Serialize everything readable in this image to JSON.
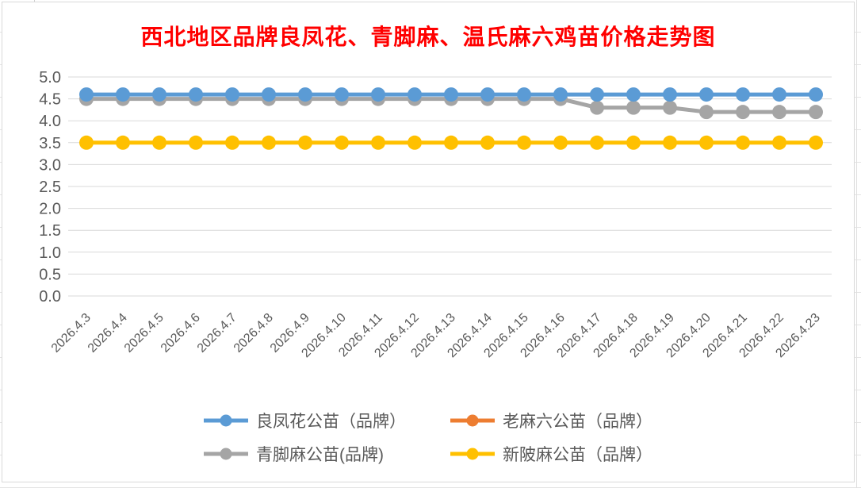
{
  "worksheet": {
    "background": "#FFFFFF",
    "gridline_color": "#E4E4E4"
  },
  "chart_data": {
    "type": "line",
    "title": "西北地区品牌良凤花、青脚麻、温氏麻六鸡苗价格走势图",
    "title_color": "#FF0000",
    "categories": [
      "2026.4.3",
      "2026.4.4",
      "2026.4.5",
      "2026.4.6",
      "2026.4.7",
      "2026.4.8",
      "2026.4.9",
      "2026.4.10",
      "2026.4.11",
      "2026.4.12",
      "2026.4.13",
      "2026.4.14",
      "2026.4.15",
      "2026.4.16",
      "2026.4.17",
      "2026.4.18",
      "2026.4.19",
      "2026.4.20",
      "2026.4.21",
      "2026.4.22",
      "2026.4.23"
    ],
    "ylim": [
      0.0,
      5.0
    ],
    "ytick_step": 0.5,
    "ytick_labels": [
      "0.0",
      "0.5",
      "1.0",
      "1.5",
      "2.0",
      "2.5",
      "3.0",
      "3.5",
      "4.0",
      "4.5",
      "5.0"
    ],
    "grid": true,
    "gridline_color": "#D9D9D9",
    "axis_label_color": "#595959",
    "xlabel_rotation_deg": -45,
    "legend_position": "bottom",
    "legend_columns": 2,
    "series": [
      {
        "name": "良凤花公苗（品牌）",
        "color": "#5B9BD5",
        "values": [
          4.6,
          4.6,
          4.6,
          4.6,
          4.6,
          4.6,
          4.6,
          4.6,
          4.6,
          4.6,
          4.6,
          4.6,
          4.6,
          4.6,
          4.6,
          4.6,
          4.6,
          4.6,
          4.6,
          4.6,
          4.6
        ]
      },
      {
        "name": "老麻六公苗（品牌）",
        "color": "#ED7D31",
        "values": [],
        "visible_in_plot": false
      },
      {
        "name": "青脚麻公苗(品牌)",
        "color": "#A5A5A5",
        "values": [
          4.5,
          4.5,
          4.5,
          4.5,
          4.5,
          4.5,
          4.5,
          4.5,
          4.5,
          4.5,
          4.5,
          4.5,
          4.5,
          4.5,
          4.3,
          4.3,
          4.3,
          4.2,
          4.2,
          4.2,
          4.2
        ]
      },
      {
        "name": "新陂麻公苗（品牌）",
        "color": "#FFC000",
        "values": [
          3.5,
          3.5,
          3.5,
          3.5,
          3.5,
          3.5,
          3.5,
          3.5,
          3.5,
          3.5,
          3.5,
          3.5,
          3.5,
          3.5,
          3.5,
          3.5,
          3.5,
          3.5,
          3.5,
          3.5,
          3.5
        ]
      }
    ]
  }
}
